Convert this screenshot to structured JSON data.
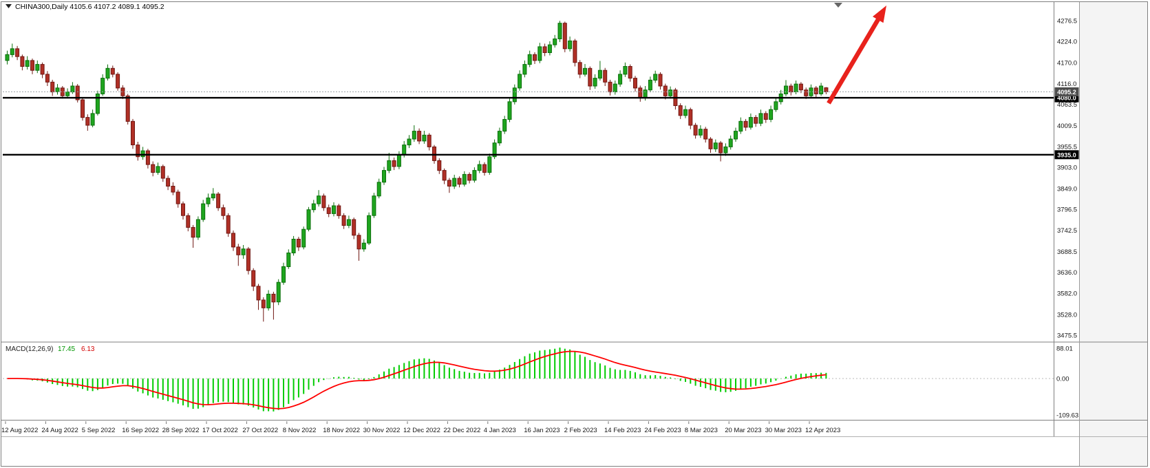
{
  "header": {
    "text": "CHINA300,Daily  4105.6 4107.2 4089.1 4095.2",
    "symbol": "CHINA300",
    "timeframe": "Daily",
    "open": "4105.6",
    "high": "4107.2",
    "low": "4089.1",
    "close": "4095.2"
  },
  "macd_panel": {
    "label": "MACD(12,26,9)",
    "main_value": "17.45",
    "signal_value": "6.13",
    "axis_labels": [
      "88.01",
      "0.00",
      "-109.63"
    ]
  },
  "price_axis": {
    "tick_labels": [
      "4276.5",
      "4224.0",
      "4170.0",
      "4116.0",
      "4063.5",
      "4009.5",
      "3955.5",
      "3903.0",
      "3849.0",
      "3796.5",
      "3742.5",
      "3688.5",
      "3636.0",
      "3582.0",
      "3528.0",
      "3475.5"
    ],
    "current_price_badge": "4095.2",
    "level_badges": [
      "4080.0",
      "3935.0"
    ]
  },
  "time_axis": {
    "bars_per_tick": 8,
    "tick_labels": [
      "12 Aug 2022",
      "24 Aug 2022",
      "5 Sep 2022",
      "16 Sep 2022",
      "28 Sep 2022",
      "17 Oct 2022",
      "27 Oct 2022",
      "8 Nov 2022",
      "18 Nov 2022",
      "30 Nov 2022",
      "12 Dec 2022",
      "22 Dec 2022",
      "4 Jan 2023",
      "16 Jan 2023",
      "2 Feb 2023",
      "14 Feb 2023",
      "24 Feb 2023",
      "8 Mar 2023",
      "20 Mar 2023",
      "30 Mar 2023",
      "12 Apr 2023"
    ]
  },
  "chart_data": {
    "type": "candlestick",
    "title": "CHINA300 Daily",
    "ylim": [
      3475.5,
      4276.5
    ],
    "horizontal_levels": [
      4080.0,
      3935.0
    ],
    "current_price": 4095.2,
    "last_candle_ohlc": [
      4105.6,
      4107.2,
      4089.1,
      4095.2
    ],
    "candles_ohlc": [
      [
        4175,
        4200,
        4165,
        4190
      ],
      [
        4190,
        4218,
        4183,
        4205
      ],
      [
        4205,
        4212,
        4176,
        4185
      ],
      [
        4185,
        4190,
        4150,
        4160
      ],
      [
        4160,
        4186,
        4152,
        4175
      ],
      [
        4175,
        4180,
        4140,
        4150
      ],
      [
        4150,
        4175,
        4143,
        4165
      ],
      [
        4165,
        4170,
        4130,
        4140
      ],
      [
        4140,
        4148,
        4110,
        4120
      ],
      [
        4120,
        4126,
        4085,
        4095
      ],
      [
        4095,
        4115,
        4088,
        4105
      ],
      [
        4105,
        4110,
        4078,
        4085
      ],
      [
        4085,
        4104,
        4080,
        4095
      ],
      [
        4095,
        4120,
        4090,
        4110
      ],
      [
        4110,
        4115,
        4068,
        4075
      ],
      [
        4075,
        4080,
        4022,
        4030
      ],
      [
        4030,
        4038,
        3996,
        4010
      ],
      [
        4010,
        4050,
        4005,
        4040
      ],
      [
        4040,
        4098,
        4035,
        4090
      ],
      [
        4090,
        4140,
        4085,
        4130
      ],
      [
        4130,
        4165,
        4124,
        4155
      ],
      [
        4155,
        4162,
        4132,
        4140
      ],
      [
        4140,
        4145,
        4098,
        4105
      ],
      [
        4105,
        4112,
        4077,
        4085
      ],
      [
        4085,
        4090,
        4012,
        4020
      ],
      [
        4020,
        4026,
        3950,
        3960
      ],
      [
        3960,
        3968,
        3920,
        3930
      ],
      [
        3930,
        3955,
        3922,
        3945
      ],
      [
        3945,
        3950,
        3900,
        3910
      ],
      [
        3910,
        3918,
        3880,
        3890
      ],
      [
        3890,
        3915,
        3884,
        3905
      ],
      [
        3905,
        3910,
        3866,
        3875
      ],
      [
        3875,
        3882,
        3845,
        3855
      ],
      [
        3855,
        3865,
        3832,
        3840
      ],
      [
        3840,
        3846,
        3800,
        3810
      ],
      [
        3810,
        3816,
        3770,
        3780
      ],
      [
        3780,
        3786,
        3740,
        3750
      ],
      [
        3750,
        3756,
        3698,
        3725
      ],
      [
        3725,
        3778,
        3718,
        3770
      ],
      [
        3770,
        3820,
        3764,
        3810
      ],
      [
        3810,
        3836,
        3802,
        3825
      ],
      [
        3825,
        3850,
        3818,
        3835
      ],
      [
        3835,
        3840,
        3792,
        3800
      ],
      [
        3800,
        3808,
        3770,
        3780
      ],
      [
        3780,
        3786,
        3726,
        3735
      ],
      [
        3735,
        3742,
        3690,
        3700
      ],
      [
        3700,
        3708,
        3652,
        3680
      ],
      [
        3680,
        3705,
        3670,
        3695
      ],
      [
        3695,
        3700,
        3630,
        3640
      ],
      [
        3640,
        3646,
        3588,
        3600
      ],
      [
        3600,
        3606,
        3540,
        3565
      ],
      [
        3565,
        3572,
        3510,
        3545
      ],
      [
        3545,
        3590,
        3538,
        3580
      ],
      [
        3580,
        3586,
        3515,
        3560
      ],
      [
        3560,
        3618,
        3552,
        3610
      ],
      [
        3610,
        3660,
        3604,
        3650
      ],
      [
        3650,
        3694,
        3644,
        3685
      ],
      [
        3685,
        3728,
        3678,
        3720
      ],
      [
        3720,
        3726,
        3690,
        3700
      ],
      [
        3700,
        3752,
        3694,
        3745
      ],
      [
        3745,
        3802,
        3740,
        3795
      ],
      [
        3795,
        3820,
        3788,
        3810
      ],
      [
        3810,
        3845,
        3803,
        3830
      ],
      [
        3830,
        3836,
        3792,
        3800
      ],
      [
        3800,
        3808,
        3776,
        3785
      ],
      [
        3785,
        3814,
        3778,
        3805
      ],
      [
        3805,
        3810,
        3772,
        3780
      ],
      [
        3780,
        3786,
        3746,
        3755
      ],
      [
        3755,
        3780,
        3748,
        3770
      ],
      [
        3770,
        3775,
        3720,
        3730
      ],
      [
        3730,
        3736,
        3665,
        3695
      ],
      [
        3695,
        3720,
        3688,
        3710
      ],
      [
        3710,
        3788,
        3705,
        3780
      ],
      [
        3780,
        3838,
        3774,
        3830
      ],
      [
        3830,
        3874,
        3824,
        3865
      ],
      [
        3865,
        3904,
        3858,
        3895
      ],
      [
        3895,
        3940,
        3888,
        3920
      ],
      [
        3920,
        3928,
        3896,
        3905
      ],
      [
        3905,
        3944,
        3898,
        3935
      ],
      [
        3935,
        3970,
        3928,
        3960
      ],
      [
        3960,
        3985,
        3952,
        3975
      ],
      [
        3975,
        4010,
        3968,
        3995
      ],
      [
        3995,
        4002,
        3962,
        3970
      ],
      [
        3970,
        3996,
        3963,
        3985
      ],
      [
        3985,
        3990,
        3946,
        3955
      ],
      [
        3955,
        3960,
        3912,
        3920
      ],
      [
        3920,
        3926,
        3886,
        3895
      ],
      [
        3895,
        3900,
        3860,
        3870
      ],
      [
        3870,
        3876,
        3838,
        3855
      ],
      [
        3855,
        3884,
        3848,
        3875
      ],
      [
        3875,
        3880,
        3852,
        3860
      ],
      [
        3860,
        3893,
        3854,
        3885
      ],
      [
        3885,
        3890,
        3862,
        3870
      ],
      [
        3870,
        3903,
        3864,
        3895
      ],
      [
        3895,
        3920,
        3888,
        3910
      ],
      [
        3910,
        3916,
        3882,
        3890
      ],
      [
        3890,
        3938,
        3884,
        3930
      ],
      [
        3930,
        3974,
        3924,
        3965
      ],
      [
        3965,
        4004,
        3958,
        3995
      ],
      [
        3995,
        4034,
        3988,
        4025
      ],
      [
        4025,
        4078,
        4018,
        4070
      ],
      [
        4070,
        4114,
        4063,
        4105
      ],
      [
        4105,
        4150,
        4098,
        4140
      ],
      [
        4140,
        4175,
        4132,
        4165
      ],
      [
        4165,
        4200,
        4158,
        4190
      ],
      [
        4190,
        4196,
        4166,
        4175
      ],
      [
        4175,
        4220,
        4168,
        4210
      ],
      [
        4210,
        4218,
        4186,
        4195
      ],
      [
        4195,
        4224,
        4188,
        4215
      ],
      [
        4215,
        4240,
        4208,
        4230
      ],
      [
        4230,
        4276,
        4222,
        4270
      ],
      [
        4270,
        4274,
        4196,
        4205
      ],
      [
        4205,
        4236,
        4198,
        4225
      ],
      [
        4225,
        4230,
        4160,
        4170
      ],
      [
        4170,
        4176,
        4130,
        4140
      ],
      [
        4140,
        4166,
        4134,
        4155
      ],
      [
        4155,
        4160,
        4100,
        4110
      ],
      [
        4110,
        4140,
        4103,
        4130
      ],
      [
        4130,
        4174,
        4124,
        4150
      ],
      [
        4150,
        4156,
        4110,
        4120
      ],
      [
        4120,
        4126,
        4086,
        4095
      ],
      [
        4095,
        4124,
        4088,
        4115
      ],
      [
        4115,
        4150,
        4108,
        4140
      ],
      [
        4140,
        4170,
        4133,
        4160
      ],
      [
        4160,
        4165,
        4121,
        4130
      ],
      [
        4130,
        4136,
        4096,
        4105
      ],
      [
        4105,
        4111,
        4070,
        4080
      ],
      [
        4080,
        4110,
        4073,
        4100
      ],
      [
        4100,
        4134,
        4094,
        4125
      ],
      [
        4125,
        4149,
        4118,
        4140
      ],
      [
        4140,
        4145,
        4101,
        4110
      ],
      [
        4110,
        4116,
        4076,
        4085
      ],
      [
        4085,
        4109,
        4078,
        4100
      ],
      [
        4100,
        4105,
        4050,
        4060
      ],
      [
        4060,
        4066,
        4026,
        4035
      ],
      [
        4035,
        4060,
        4028,
        4050
      ],
      [
        4050,
        4055,
        4000,
        4010
      ],
      [
        4010,
        4016,
        3976,
        3985
      ],
      [
        3985,
        4010,
        3978,
        4000
      ],
      [
        4000,
        4006,
        3966,
        3975
      ],
      [
        3975,
        3980,
        3940,
        3950
      ],
      [
        3950,
        3974,
        3942,
        3965
      ],
      [
        3965,
        3970,
        3918,
        3940
      ],
      [
        3940,
        3964,
        3932,
        3955
      ],
      [
        3955,
        3984,
        3948,
        3975
      ],
      [
        3975,
        4004,
        3968,
        3995
      ],
      [
        3995,
        4030,
        3988,
        4020
      ],
      [
        4020,
        4026,
        3996,
        4005
      ],
      [
        4005,
        4040,
        3999,
        4030
      ],
      [
        4030,
        4036,
        4006,
        4015
      ],
      [
        4015,
        4050,
        4008,
        4040
      ],
      [
        4040,
        4046,
        4016,
        4025
      ],
      [
        4025,
        4060,
        4018,
        4050
      ],
      [
        4050,
        4080,
        4044,
        4070
      ],
      [
        4070,
        4100,
        4063,
        4090
      ],
      [
        4090,
        4125,
        4084,
        4110
      ],
      [
        4110,
        4116,
        4086,
        4095
      ],
      [
        4095,
        4124,
        4089,
        4115
      ],
      [
        4115,
        4120,
        4092,
        4100
      ],
      [
        4100,
        4106,
        4077,
        4085
      ],
      [
        4085,
        4114,
        4080,
        4105
      ],
      [
        4105,
        4110,
        4082,
        4090
      ],
      [
        4090,
        4118,
        4085,
        4110
      ],
      [
        4105.6,
        4107.2,
        4089.1,
        4095.2
      ]
    ],
    "macd": {
      "fast": 12,
      "slow": 26,
      "signal": 9,
      "main": 17.45,
      "signal_value": 6.13,
      "hist_max": 88.01,
      "hist_min": -109.63
    },
    "annotations": {
      "trend_arrow": {
        "from_xy": [
          1204,
          150
        ],
        "to_xy": [
          1288,
          8
        ],
        "color": "#e8221c",
        "direction": "up"
      }
    }
  },
  "colors": {
    "bull_candle": "#1fa51f",
    "bull_edge": "#0b6e0b",
    "bear_candle": "#b03026",
    "bear_edge": "#701712",
    "macd_histogram": "#00cc00",
    "macd_signal": "#ff0000",
    "level_line": "#000000",
    "level_badge": "#000000",
    "current_price_badge": "#4d4d4d",
    "axis_text": "#111111",
    "background": "#ffffff"
  }
}
